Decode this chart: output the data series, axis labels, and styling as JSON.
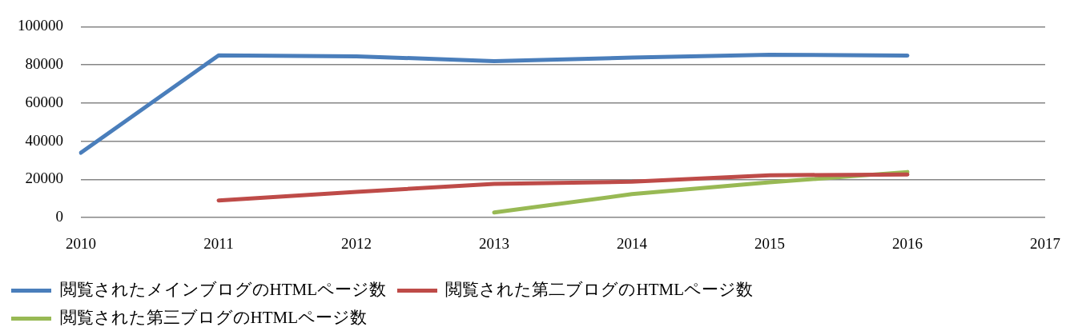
{
  "chart_data": {
    "type": "line",
    "categories": [
      "2010",
      "2011",
      "2012",
      "2013",
      "2014",
      "2015",
      "2016",
      "2017"
    ],
    "series": [
      {
        "name": "閲覧されたメインブログのHTMLページ数",
        "color": "#4a7ebb",
        "values": [
          34000,
          85000,
          84500,
          82000,
          83800,
          85300,
          84900,
          null
        ]
      },
      {
        "name": "閲覧された第二ブログのHTMLページ数",
        "color": "#be4b48",
        "values": [
          null,
          9000,
          13500,
          17700,
          18800,
          22200,
          22600,
          null
        ]
      },
      {
        "name": "閲覧された第三ブログのHTMLページ数",
        "color": "#98b954",
        "values": [
          null,
          null,
          null,
          2700,
          12300,
          18500,
          23900,
          null
        ]
      }
    ],
    "ylim": [
      0,
      100000
    ],
    "yticks": [
      0,
      20000,
      40000,
      60000,
      80000,
      100000
    ],
    "grid": "y",
    "legend": "bottom",
    "marker": "none",
    "line_style": "solid"
  }
}
